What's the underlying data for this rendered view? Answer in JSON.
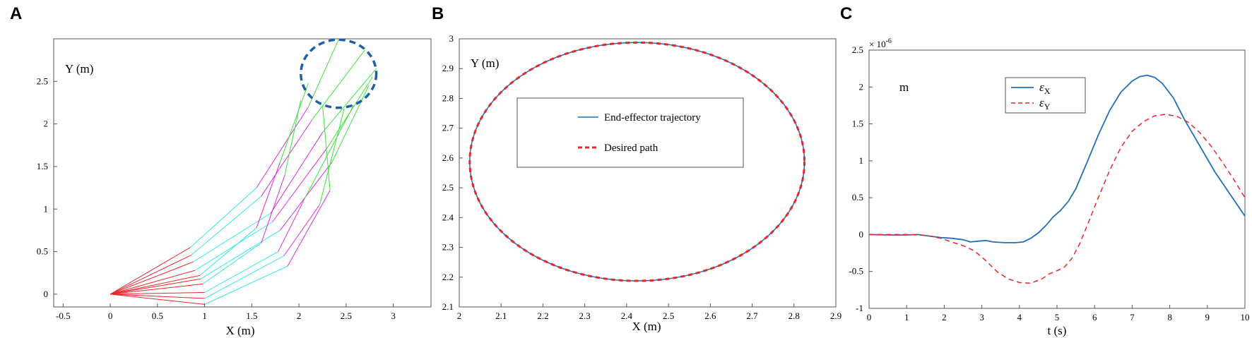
{
  "figure": {
    "panel_labels": [
      "A",
      "B",
      "C"
    ]
  },
  "chart_data": [
    {
      "panel": "A",
      "type": "line",
      "xlabel": "X (m)",
      "ylabel": "Y (m)",
      "xlim": [
        -0.6,
        3.4
      ],
      "ylim": [
        -0.15,
        3.0
      ],
      "xticks": [
        -0.5,
        0,
        0.5,
        1,
        1.5,
        2,
        2.5,
        3
      ],
      "yticks": [
        0,
        0.5,
        1,
        1.5,
        2,
        2.5
      ],
      "link_colors": [
        "#e8262c",
        "#36e6ea",
        "#dd2cdd",
        "#3fe23a"
      ],
      "circle_color": "#1f5fa8",
      "target_circle": {
        "cx": 2.42,
        "cy": 2.59,
        "rx": 0.4,
        "ry": 0.4
      },
      "arm_configurations": [
        [
          [
            0,
            0
          ],
          [
            0.85,
            0.55
          ],
          [
            1.55,
            1.25
          ],
          [
            2.1,
            2.2
          ],
          [
            2.42,
            2.99
          ]
        ],
        [
          [
            0,
            0
          ],
          [
            0.86,
            0.46
          ],
          [
            1.6,
            1.15
          ],
          [
            2.14,
            2.05
          ],
          [
            2.7,
            2.87
          ]
        ],
        [
          [
            0,
            0
          ],
          [
            0.88,
            0.38
          ],
          [
            1.7,
            0.95
          ],
          [
            2.25,
            1.9
          ],
          [
            2.82,
            2.65
          ]
        ],
        [
          [
            0,
            0
          ],
          [
            0.9,
            0.28
          ],
          [
            1.72,
            0.85
          ],
          [
            2.3,
            1.72
          ],
          [
            2.78,
            2.55
          ]
        ],
        [
          [
            0,
            0
          ],
          [
            0.96,
            0.18
          ],
          [
            1.8,
            0.75
          ],
          [
            2.35,
            1.55
          ],
          [
            2.74,
            2.45
          ]
        ],
        [
          [
            0,
            0
          ],
          [
            1.0,
            0.02
          ],
          [
            1.78,
            0.5
          ],
          [
            2.05,
            1.1
          ],
          [
            2.58,
            2.22
          ]
        ],
        [
          [
            0,
            0
          ],
          [
            1.0,
            -0.05
          ],
          [
            1.84,
            0.45
          ],
          [
            2.22,
            1.05
          ],
          [
            2.48,
            2.18
          ]
        ],
        [
          [
            0,
            0
          ],
          [
            1.0,
            -0.12
          ],
          [
            1.88,
            0.33
          ],
          [
            2.33,
            1.22
          ],
          [
            2.25,
            2.22
          ]
        ],
        [
          [
            0,
            0
          ],
          [
            0.98,
            0.12
          ],
          [
            1.6,
            0.6
          ],
          [
            1.85,
            1.4
          ],
          [
            2.02,
            2.28
          ]
        ],
        [
          [
            0,
            0
          ],
          [
            0.95,
            0.22
          ],
          [
            1.55,
            0.78
          ],
          [
            1.8,
            1.55
          ],
          [
            2.1,
            2.48
          ]
        ]
      ]
    },
    {
      "panel": "B",
      "type": "line",
      "xlabel": "X (m)",
      "ylabel": "Y (m)",
      "xlim": [
        2.0,
        2.9
      ],
      "ylim": [
        2.1,
        3.0
      ],
      "xticks": [
        2,
        2.1,
        2.2,
        2.3,
        2.4,
        2.5,
        2.6,
        2.7,
        2.8,
        2.9
      ],
      "yticks": [
        2.1,
        2.2,
        2.3,
        2.4,
        2.5,
        2.6,
        2.7,
        2.8,
        2.9,
        3
      ],
      "ellipse": {
        "cx": 2.425,
        "cy": 2.5875,
        "rx": 0.4,
        "ry": 0.4
      },
      "series": [
        {
          "name": "End-effector trajectory",
          "color": "#1f6fb8",
          "style": "solid"
        },
        {
          "name": "Desired path",
          "color": "#e8262c",
          "style": "dashed"
        }
      ]
    },
    {
      "panel": "C",
      "type": "line",
      "xlabel": "t (s)",
      "ylabel": "m",
      "exponent_label": "× 10",
      "exponent_power": "-6",
      "xlim": [
        0,
        10
      ],
      "ylim": [
        -1,
        2.5
      ],
      "xticks": [
        0,
        1,
        2,
        3,
        4,
        5,
        6,
        7,
        8,
        9,
        10
      ],
      "yticks": [
        -1,
        -0.5,
        0,
        0.5,
        1,
        1.5,
        2,
        2.5
      ],
      "series": [
        {
          "name": "ε",
          "subscript": "X",
          "color": "#1f6fb8",
          "style": "solid",
          "x": [
            0,
            0.5,
            1,
            1.3,
            1.6,
            1.9,
            2.2,
            2.5,
            2.7,
            2.9,
            3.1,
            3.3,
            3.6,
            3.9,
            4.1,
            4.3,
            4.5,
            4.7,
            4.9,
            5.1,
            5.3,
            5.5,
            5.8,
            6.1,
            6.4,
            6.7,
            7.0,
            7.2,
            7.4,
            7.6,
            7.8,
            8.1,
            8.4,
            8.8,
            9.2,
            9.6,
            10
          ],
          "y": [
            0,
            -0.005,
            -0.005,
            0,
            -0.02,
            -0.04,
            -0.05,
            -0.07,
            -0.1,
            -0.09,
            -0.08,
            -0.1,
            -0.11,
            -0.11,
            -0.1,
            -0.05,
            0.02,
            0.12,
            0.24,
            0.33,
            0.45,
            0.62,
            0.98,
            1.35,
            1.68,
            1.93,
            2.08,
            2.14,
            2.16,
            2.13,
            2.05,
            1.85,
            1.55,
            1.2,
            0.85,
            0.55,
            0.25
          ]
        },
        {
          "name": "ε",
          "subscript": "Y",
          "color": "#e8262c",
          "style": "dashed",
          "x": [
            0,
            0.5,
            1,
            1.5,
            1.9,
            2.2,
            2.5,
            2.8,
            3.1,
            3.4,
            3.7,
            4.0,
            4.3,
            4.6,
            4.8,
            5.0,
            5.2,
            5.4,
            5.6,
            5.8,
            6.1,
            6.4,
            6.7,
            7.0,
            7.3,
            7.6,
            7.9,
            8.2,
            8.5,
            8.8,
            9.1,
            9.4,
            9.7,
            10
          ],
          "y": [
            0,
            0,
            0,
            -0.01,
            -0.05,
            -0.1,
            -0.15,
            -0.22,
            -0.35,
            -0.5,
            -0.6,
            -0.65,
            -0.66,
            -0.6,
            -0.53,
            -0.49,
            -0.44,
            -0.32,
            -0.13,
            0.12,
            0.5,
            0.87,
            1.18,
            1.4,
            1.53,
            1.61,
            1.63,
            1.6,
            1.52,
            1.38,
            1.2,
            0.98,
            0.75,
            0.5
          ]
        }
      ]
    }
  ]
}
